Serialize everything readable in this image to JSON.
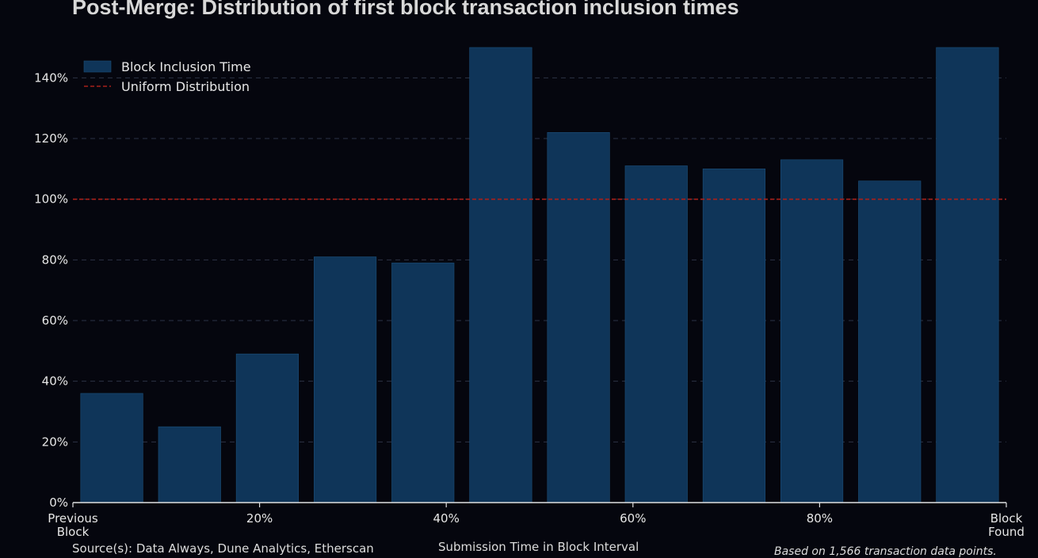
{
  "title": "Post-Merge: Distribution of first block transaction inclusion times",
  "source": "Source(s): Data Always, Dune Analytics, Etherscan",
  "note": "Based on 1,566 transaction data points.",
  "colors": {
    "background": "#05060e",
    "bar": "#0f3559",
    "bar_edge": "#1b4f7a",
    "reference_line": "#a8201a",
    "grid": "#2c3345",
    "text": "#e6e6e6"
  },
  "chart_data": {
    "type": "bar",
    "title": "Post-Merge: Distribution of first block transaction inclusion times",
    "xlabel": "Submission Time in Block Interval",
    "ylabel": "",
    "x_ticks": [
      "Previous\nBlock",
      "20%",
      "40%",
      "60%",
      "80%",
      "Block\nFound"
    ],
    "x_tick_positions": [
      0,
      20,
      40,
      60,
      80,
      100
    ],
    "bar_count": 12,
    "series": [
      {
        "name": "Block Inclusion Time",
        "values": [
          36,
          25,
          49,
          81,
          79,
          150,
          122,
          111,
          110,
          113,
          106,
          150
        ]
      }
    ],
    "reference_line": {
      "name": "Uniform Distribution",
      "value": 100,
      "style": "dashed"
    },
    "ylim": [
      0,
      150
    ],
    "y_ticks": [
      "0%",
      "20%",
      "40%",
      "60%",
      "80%",
      "100%",
      "120%",
      "140%"
    ],
    "y_tick_values": [
      0,
      20,
      40,
      60,
      80,
      100,
      120,
      140
    ],
    "grid": "horizontal-dashed",
    "legend_position": "top-left"
  }
}
